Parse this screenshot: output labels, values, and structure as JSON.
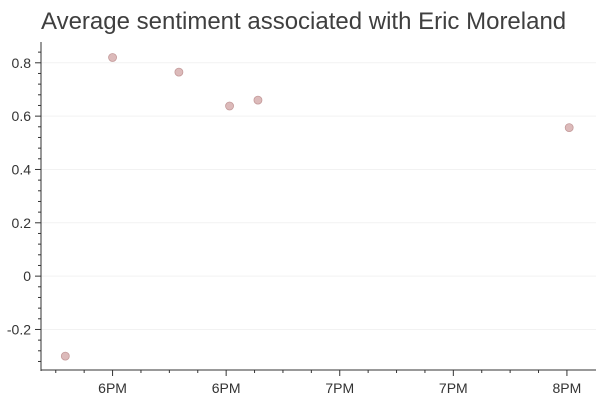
{
  "chart_data": {
    "type": "scatter",
    "title": "Average sentiment associated with Eric Moreland",
    "xlabel": "",
    "ylabel": "",
    "x_ticks": [
      {
        "x": 0.125,
        "label": "6PM"
      },
      {
        "x": 0.625,
        "label": "6PM"
      },
      {
        "x": 1.125,
        "label": "7PM"
      },
      {
        "x": 1.625,
        "label": "7PM"
      },
      {
        "x": 2.125,
        "label": "8PM"
      }
    ],
    "xlim": [
      -0.19,
      2.253
    ],
    "ylim": [
      -0.352,
      0.878
    ],
    "y_ticks": [
      -0.2,
      0,
      0.2,
      0.4,
      0.6,
      0.8
    ],
    "y_tick_labels": [
      "-0.2",
      "0",
      "0.2",
      "0.4",
      "0.6",
      "0.8"
    ],
    "grid": true,
    "marker_color": "#d8b3b3",
    "marker_stroke": "#c49a9a",
    "points": [
      {
        "x": -0.083,
        "y": -0.3
      },
      {
        "x": 0.125,
        "y": 0.82
      },
      {
        "x": 0.417,
        "y": 0.765
      },
      {
        "x": 0.64,
        "y": 0.638
      },
      {
        "x": 0.765,
        "y": 0.66
      },
      {
        "x": 2.135,
        "y": 0.557
      }
    ]
  }
}
